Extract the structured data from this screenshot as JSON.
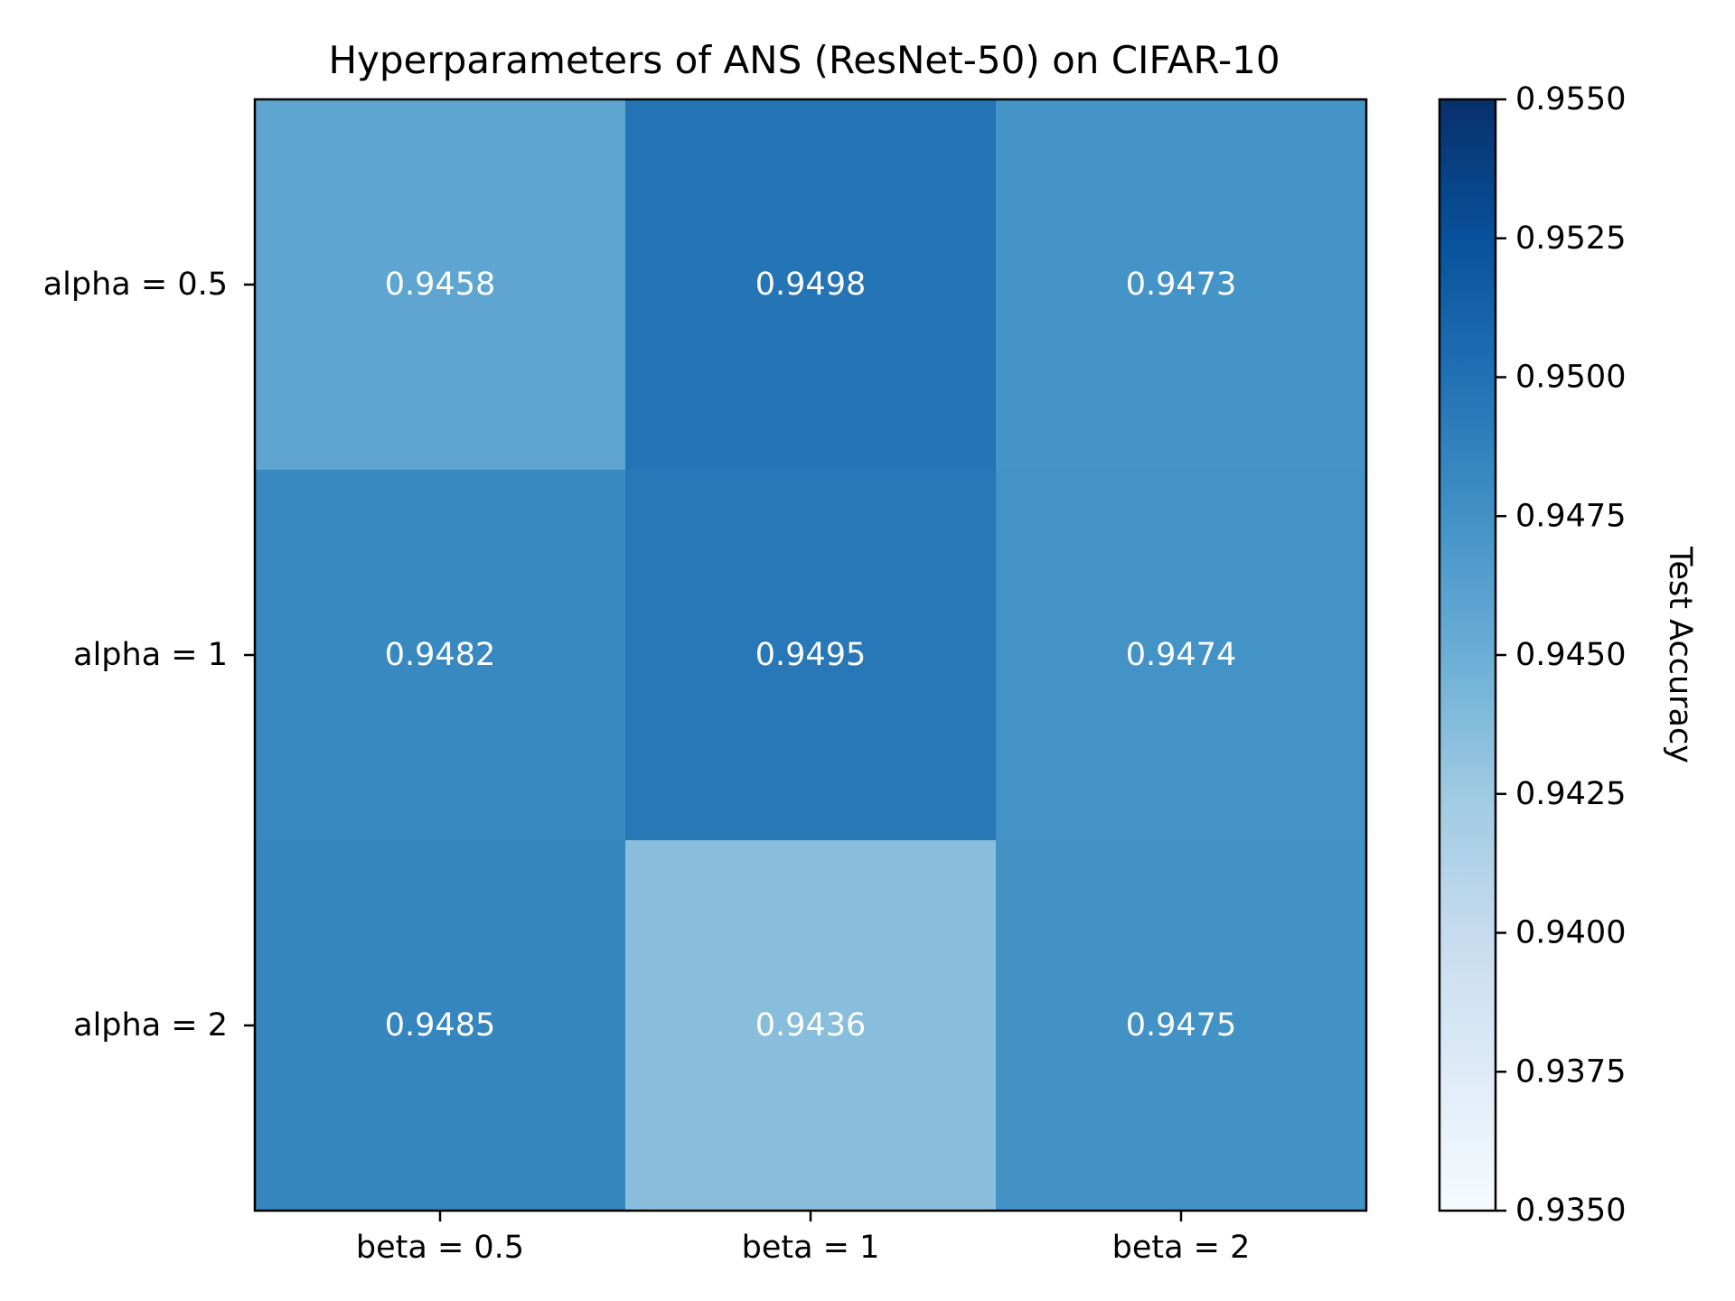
{
  "chart_data": {
    "type": "heatmap",
    "title": "Hyperparameters of ANS (ResNet-50) on CIFAR-10",
    "x_categories": [
      "beta = 0.5",
      "beta = 1",
      "beta = 2"
    ],
    "y_categories": [
      "alpha = 0.5",
      "alpha = 1",
      "alpha = 2"
    ],
    "values": [
      [
        0.9458,
        0.9498,
        0.9473
      ],
      [
        0.9482,
        0.9495,
        0.9474
      ],
      [
        0.9485,
        0.9436,
        0.9475
      ]
    ],
    "cell_labels": [
      [
        "0.9458",
        "0.9498",
        "0.9473"
      ],
      [
        "0.9482",
        "0.9495",
        "0.9474"
      ],
      [
        "0.9485",
        "0.9436",
        "0.9475"
      ]
    ],
    "colorbar": {
      "label": "Test Accuracy",
      "range": [
        0.935,
        0.955
      ],
      "ticks": [
        0.955,
        0.9525,
        0.95,
        0.9475,
        0.945,
        0.9425,
        0.94,
        0.9375,
        0.935
      ],
      "tick_labels": [
        "0.9550",
        "0.9525",
        "0.9500",
        "0.9475",
        "0.9450",
        "0.9425",
        "0.9400",
        "0.9375",
        "0.9350"
      ]
    },
    "colormap": "Blues",
    "colormap_stops": [
      "#f7fbff",
      "#deebf7",
      "#c6dbef",
      "#9ecae1",
      "#6baed6",
      "#4292c6",
      "#2171b5",
      "#08519c",
      "#08306b"
    ],
    "cell_text_color": "#ffffff"
  }
}
